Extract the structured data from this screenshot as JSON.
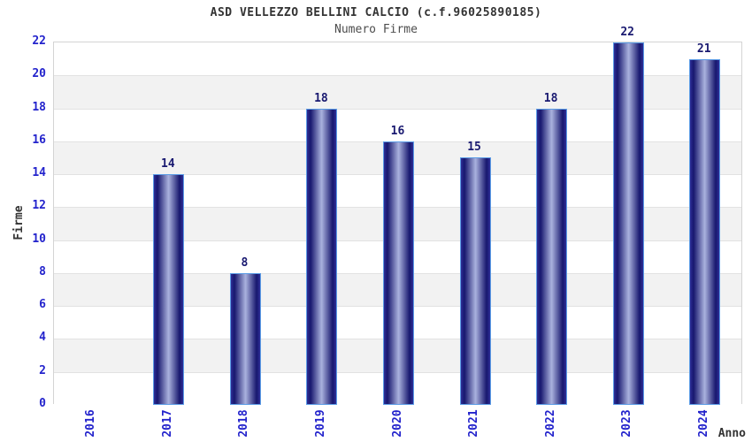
{
  "chart_data": {
    "type": "bar",
    "title": "ASD VELLEZZO BELLINI CALCIO (c.f.96025890185)",
    "subtitle": "Numero Firme",
    "categories": [
      "2016",
      "2017",
      "2018",
      "2019",
      "2020",
      "2021",
      "2022",
      "2023",
      "2024"
    ],
    "values": [
      0,
      14,
      8,
      18,
      16,
      15,
      18,
      22,
      21
    ],
    "value_labels": [
      "",
      "14",
      "8",
      "18",
      "16",
      "15",
      "18",
      "22",
      "21"
    ],
    "xlabel": "Anno",
    "ylabel": "Firme",
    "ylim": [
      0,
      22
    ],
    "ytick_step": 2,
    "ytick_labels": [
      "0",
      "2",
      "4",
      "6",
      "8",
      "10",
      "12",
      "14",
      "16",
      "18",
      "20",
      "22"
    ],
    "grid": "horizontal",
    "band_fill": "alternating",
    "legend_position": "none"
  },
  "colors": {
    "title_color": "#333333",
    "subtitle_color": "#4d4d4d",
    "axis_tick_color": "#2323cc",
    "axis_title_color": "#333333",
    "value_label_color": "#191970",
    "bar_border": "#5b9ce6",
    "bar_edge": "#2e2e96",
    "bar_dark": "#17176e",
    "bar_highlight": "#aab2de",
    "band_gray": "#f2f2f2",
    "band_white": "#ffffff",
    "grid_line": "#e2e2e2",
    "plot_border": "#d4d4d4"
  }
}
